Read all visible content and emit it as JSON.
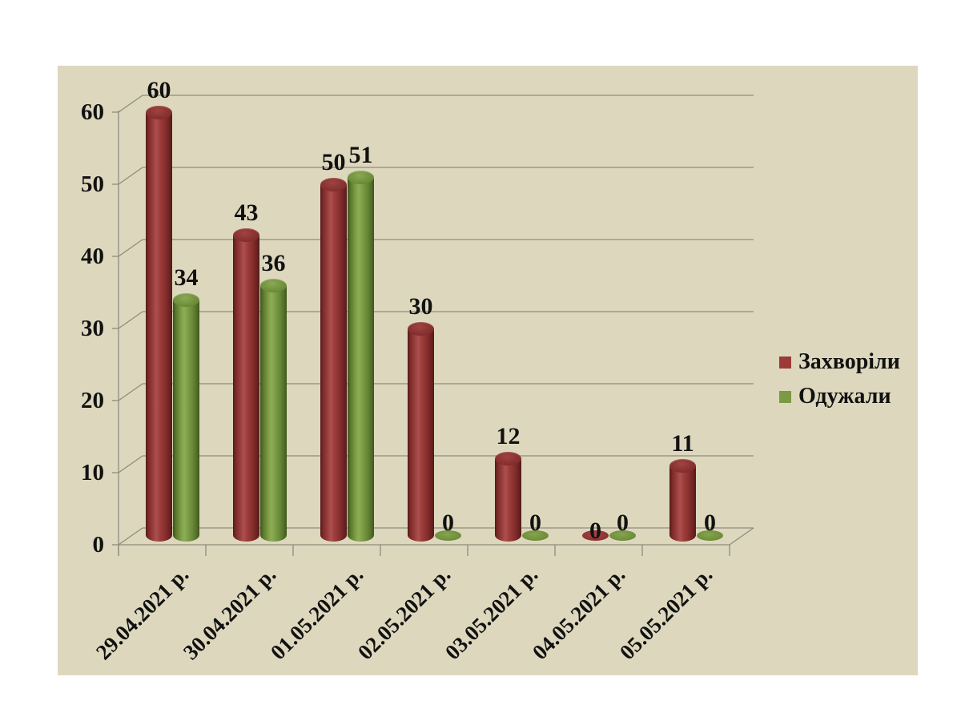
{
  "chart_data": {
    "type": "bar",
    "subtype": "3d-cylinder",
    "title": "",
    "xlabel": "",
    "ylabel": "",
    "categories": [
      "29.04.2021 р.",
      "30.04.2021 р.",
      "01.05.2021 р.",
      "02.05.2021 р.",
      "03.05.2021 р.",
      "04.05.2021 р.",
      "05.05.2021 р."
    ],
    "series": [
      {
        "name": "Захворіли",
        "color": "#9c3a38",
        "values": [
          60,
          43,
          50,
          30,
          12,
          0,
          11
        ]
      },
      {
        "name": "Одужали",
        "color": "#7a9a44",
        "values": [
          34,
          36,
          51,
          0,
          0,
          0,
          0
        ]
      }
    ],
    "ylim": [
      0,
      60
    ],
    "yticks": [
      0,
      10,
      20,
      30,
      40,
      50,
      60
    ],
    "grid": true,
    "legend_position": "right"
  },
  "legend": {
    "items": [
      {
        "label": "Захворіли",
        "color": "#9c3a38"
      },
      {
        "label": "Одужали",
        "color": "#7a9a44"
      }
    ]
  },
  "colors": {
    "page_background": "#ffffff",
    "plot_background": "#ddd8bd",
    "gridline": "#8f8c7e",
    "axis": "#8f8c7e",
    "text": "#111111",
    "series_sick": "#9c3a38",
    "series_recovered": "#7a9a44"
  }
}
